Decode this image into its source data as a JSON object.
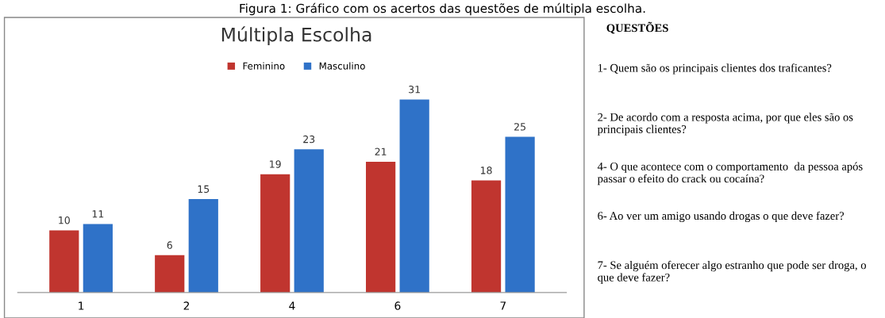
{
  "chart_data": [
    {
      "type": "bar",
      "title": "Múltipla Escolha",
      "categories": [
        "1",
        "2",
        "4",
        "6",
        "7"
      ],
      "series": [
        {
          "name": "Feminino",
          "color": "#c0352f",
          "values": [
            10,
            6,
            19,
            21,
            18
          ]
        },
        {
          "name": "Masculino",
          "color": "#2f72c8",
          "values": [
            11,
            15,
            23,
            31,
            25
          ]
        }
      ],
      "data_labels": true,
      "legend": "top",
      "grid": false,
      "annotations": [
        "Figura 1: Gráfico com os acertos das questões de múltipla escolha."
      ]
    },
    {
      "type": "other",
      "title": "QUESTÕES",
      "annotations": [
        "1- Quem são os principais clientes dos traficantes?",
        "2- De acordo com a resposta acima, por que eles são os principais clientes?",
        "4- O que acontece com o comportamento  da pessoa após passar o efeito do crack ou cocaína?",
        "6- Ao ver um amigo usando drogas o que deve fazer?",
        "7- Se alguém oferecer algo estranho que pode ser droga, o que deve fazer?"
      ]
    }
  ]
}
